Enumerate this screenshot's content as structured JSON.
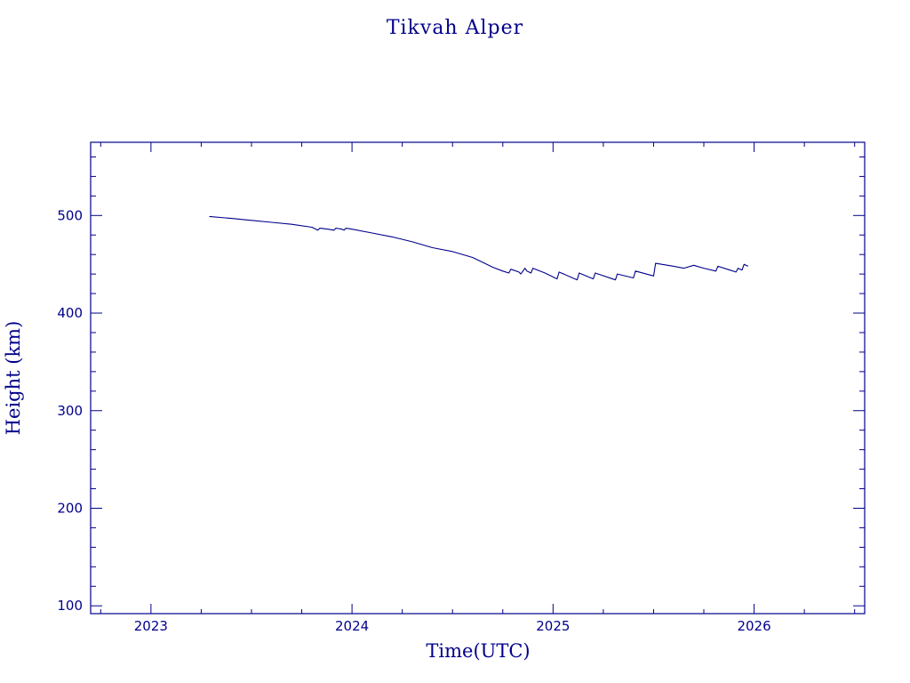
{
  "colors": {
    "foreground": "#00008b",
    "background": "#ffffff"
  },
  "chart_data": {
    "type": "line",
    "title": "Tikvah Alper",
    "xlabel": "Time(UTC)",
    "ylabel": "Height (km)",
    "xlim": [
      2022.7,
      2026.55
    ],
    "ylim": [
      92,
      575
    ],
    "grid": false,
    "x_major_ticks": [
      2023,
      2024,
      2025,
      2026
    ],
    "x_tick_labels": [
      "2023",
      "2024",
      "2025",
      "2026"
    ],
    "x_minor_step": 0.25,
    "y_major_ticks": [
      100,
      200,
      300,
      400,
      500
    ],
    "y_tick_labels": [
      "100",
      "200",
      "300",
      "400",
      "500"
    ],
    "y_minor_step": 20,
    "series": [
      {
        "color": "#00008b",
        "x": [
          2023.29,
          2023.4,
          2023.5,
          2023.6,
          2023.7,
          2023.8,
          2023.83,
          2023.84,
          2023.88,
          2023.91,
          2023.92,
          2023.95,
          2023.96,
          2023.97,
          2024.0,
          2024.1,
          2024.2,
          2024.3,
          2024.4,
          2024.5,
          2024.6,
          2024.65,
          2024.7,
          2024.75,
          2024.78,
          2024.79,
          2024.83,
          2024.84,
          2024.86,
          2024.87,
          2024.89,
          2024.9,
          2024.96,
          2025.02,
          2025.03,
          2025.12,
          2025.13,
          2025.2,
          2025.21,
          2025.31,
          2025.32,
          2025.4,
          2025.41,
          2025.5,
          2025.51,
          2025.6,
          2025.65,
          2025.7,
          2025.75,
          2025.81,
          2025.82,
          2025.88,
          2025.91,
          2025.92,
          2025.94,
          2025.95,
          2025.97
        ],
        "y": [
          499,
          497,
          495,
          493,
          491,
          488,
          485,
          487,
          486,
          485,
          487,
          486,
          485,
          487,
          486,
          482,
          478,
          473,
          467,
          463,
          457,
          452,
          447,
          443,
          441,
          445,
          442,
          440,
          446,
          443,
          441,
          446,
          441,
          435,
          442,
          434,
          441,
          435,
          441,
          434,
          440,
          436,
          443,
          438,
          451,
          448,
          446,
          449,
          446,
          443,
          448,
          444,
          442,
          446,
          444,
          450,
          448
        ]
      }
    ]
  }
}
